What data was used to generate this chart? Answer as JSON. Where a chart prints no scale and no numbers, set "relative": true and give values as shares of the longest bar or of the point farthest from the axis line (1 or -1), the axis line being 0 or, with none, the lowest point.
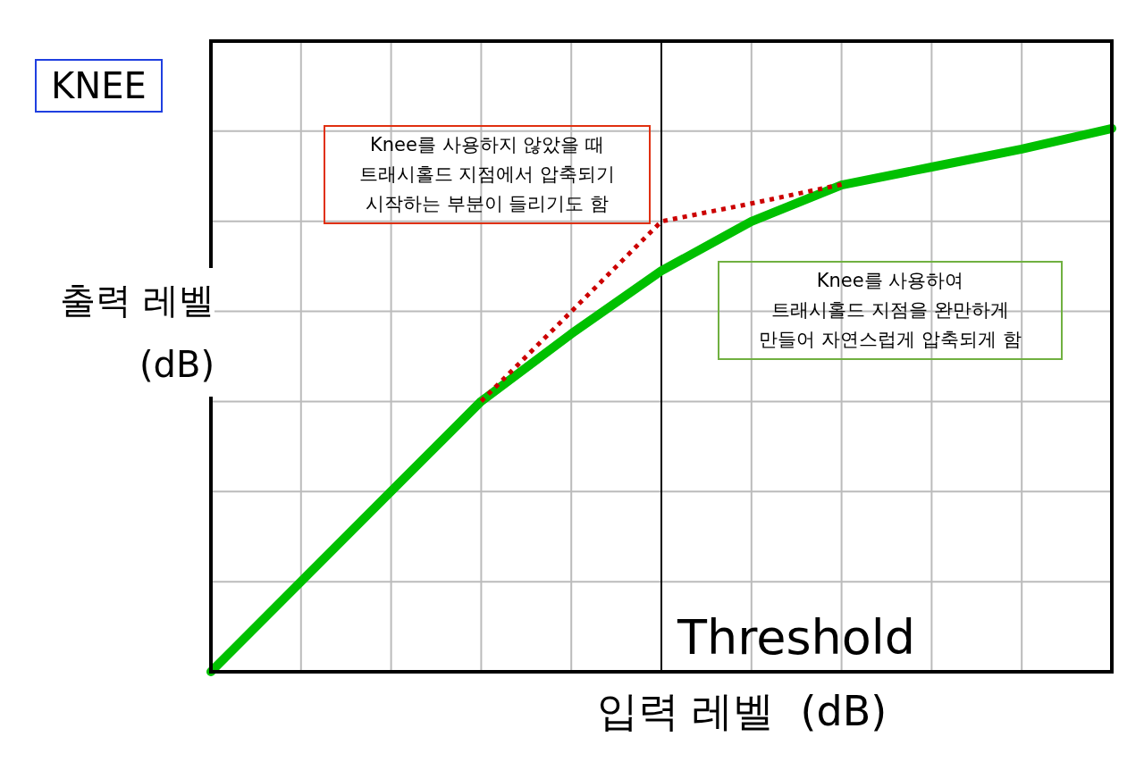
{
  "chart_data": {
    "type": "line",
    "relative": true,
    "title": "KNEE",
    "xlabel": "입력 레벨  (dB)",
    "ylabel": "출력 레벨 (dB)",
    "categories": [
      null,
      null,
      null,
      null,
      null,
      null,
      null,
      null,
      null,
      null,
      null
    ],
    "series": [
      {
        "color": "#00c000",
        "line_style": "solid",
        "values": [
          0,
          0.166,
          0.332,
          0.498,
          0.622,
          0.738,
          0.829,
          0.896,
          0.929,
          0.962,
          1
        ]
      },
      {
        "color": "#cc0000",
        "line_style": "dotted",
        "values": [
          null,
          null,
          null,
          0.498,
          0.663,
          0.829,
          0.862,
          0.897,
          null,
          null,
          null
        ]
      }
    ],
    "annotations": [
      "Knee를 사용하지 않았을 때\n트래시홀드 지점에서 압축되기\n시작하는 부분이 들리기도 함",
      "Knee를 사용하여\n트래시홀드 지점을 완만하게\n만들어 자연스럽게 압축되게 함",
      "Threshold"
    ],
    "grid": true,
    "marker": "none"
  }
}
